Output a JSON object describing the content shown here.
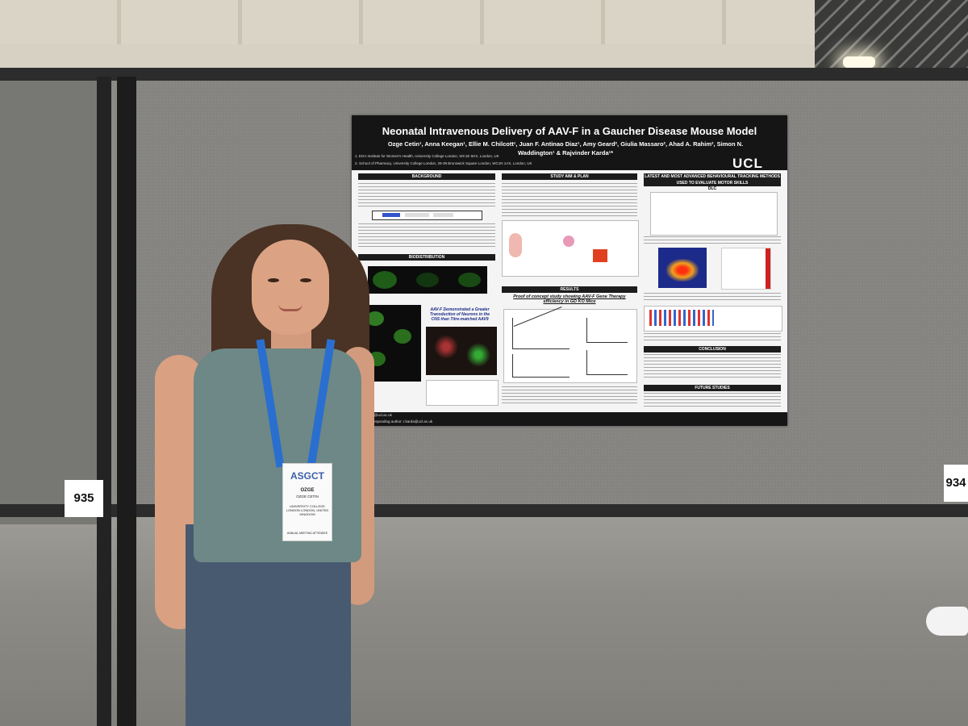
{
  "poster": {
    "title": "Neonatal Intravenous Delivery of AAV-F in a Gaucher Disease Mouse Model",
    "authors": "Ozge Cetin¹, Anna Keegan¹, Ellie M. Chilcott¹, Juan F. Antinao Diaz¹, Amy Geard², Giulia Massaro², Ahad A. Rahim², Simon N. Waddington¹ & Rajvinder Karda¹*",
    "affiliation_1": "1. EGA Institute for Women's Health, University College London, WC1E 6HX, London, UK",
    "affiliation_2": "2. School of Pharmacy, University College London, 29-39 Brunswick Square London, WC1N 1AX, London, UK",
    "logo": "UCL",
    "sections": {
      "background": "BACKGROUND",
      "study_aim": "STUDY AIM & PLAN",
      "tracking": "LATEST AND MOST ADVANCED BEHAVIOURAL TRACKING METHODS USED TO EVALUATE MOTOR SKILLS",
      "dlc": "DLC",
      "biodistribution": "BIODISTRIBUTION",
      "results": "RESULTS",
      "proof": "Proof of concept study showing AAV-F Gene Therapy efficiency in GD KO Mice",
      "aavf_claim": "AAV-F Demonstrated a Greater Transduction of Neurons in the CNS than Titre-matched AAV9",
      "conclusion": "CONCLUSION",
      "future": "FUTURE STUDIES"
    },
    "footer_email": "cetin@ucl.ac.uk",
    "footer_corresponding": "Corresponding author: r.karda@ucl.ac.uk"
  },
  "booth_numbers": {
    "left": "935",
    "right": "934"
  },
  "badge": {
    "logo": "ASGCT",
    "name": "OZGE",
    "full_name": "OZGE CETIN",
    "org": "UNIVERSITY COLLEGE LONDON LONDON, UNITED KINGDOM",
    "role": "ANNUAL MEETING ATTENDEE"
  }
}
